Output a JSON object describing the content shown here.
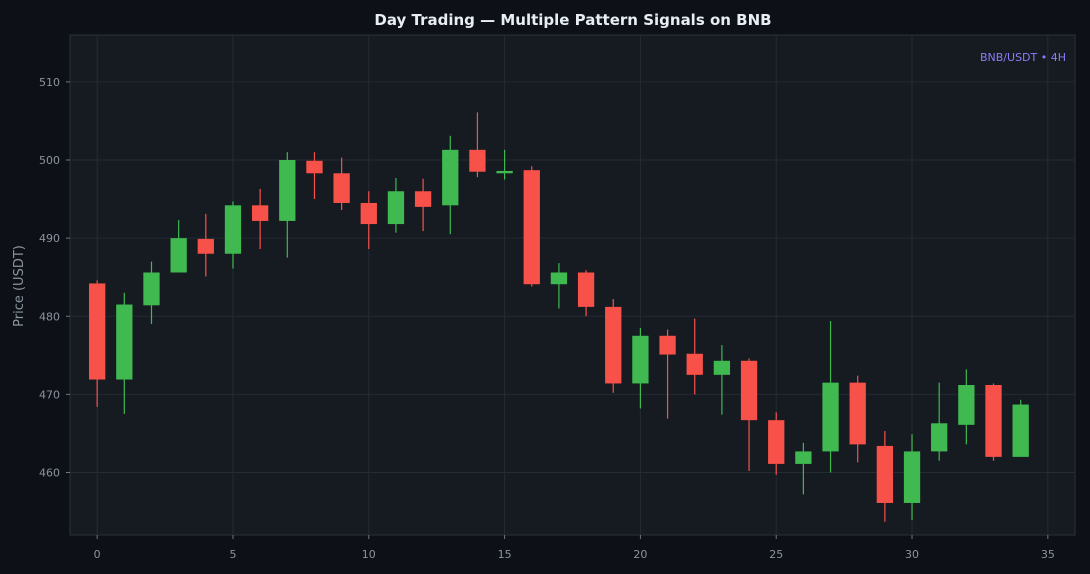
{
  "chart_data": {
    "type": "candlestick",
    "title": "Day Trading — Multiple Pattern Signals on BNB",
    "ylabel": "Price (USDT)",
    "xlabel": "",
    "annotation": "BNB/USDT • 4H",
    "xlim": [
      -1,
      36
    ],
    "ylim": [
      452,
      516
    ],
    "x_ticks": [
      0,
      5,
      10,
      15,
      20,
      25,
      30,
      35
    ],
    "y_ticks": [
      460,
      470,
      480,
      490,
      500,
      510
    ],
    "grid": true,
    "colors": {
      "up": "#3fb950",
      "down": "#f85149",
      "annotation": "#8b7cf6"
    },
    "candles": [
      {
        "x": 0,
        "open": 484.2,
        "high": 484.6,
        "low": 468.4,
        "close": 471.9
      },
      {
        "x": 1,
        "open": 471.9,
        "high": 483.0,
        "low": 467.5,
        "close": 481.5
      },
      {
        "x": 2,
        "open": 481.4,
        "high": 487.0,
        "low": 479.0,
        "close": 485.6
      },
      {
        "x": 3,
        "open": 485.6,
        "high": 492.3,
        "low": 485.6,
        "close": 490.0
      },
      {
        "x": 4,
        "open": 489.9,
        "high": 493.1,
        "low": 485.1,
        "close": 488.0
      },
      {
        "x": 5,
        "open": 488.0,
        "high": 494.7,
        "low": 486.1,
        "close": 494.2
      },
      {
        "x": 6,
        "open": 494.2,
        "high": 496.3,
        "low": 488.6,
        "close": 492.2
      },
      {
        "x": 7,
        "open": 492.2,
        "high": 501.0,
        "low": 487.5,
        "close": 500.0
      },
      {
        "x": 8,
        "open": 499.9,
        "high": 501.0,
        "low": 495.0,
        "close": 498.3
      },
      {
        "x": 9,
        "open": 498.3,
        "high": 500.3,
        "low": 493.6,
        "close": 494.5
      },
      {
        "x": 10,
        "open": 494.5,
        "high": 496.0,
        "low": 488.6,
        "close": 491.8
      },
      {
        "x": 11,
        "open": 491.8,
        "high": 497.7,
        "low": 490.7,
        "close": 496.0
      },
      {
        "x": 12,
        "open": 496.0,
        "high": 497.6,
        "low": 490.9,
        "close": 494.0
      },
      {
        "x": 13,
        "open": 494.2,
        "high": 503.1,
        "low": 490.5,
        "close": 501.3
      },
      {
        "x": 14,
        "open": 501.3,
        "high": 506.1,
        "low": 497.8,
        "close": 498.5
      },
      {
        "x": 15,
        "open": 498.3,
        "high": 501.3,
        "low": 497.5,
        "close": 498.6
      },
      {
        "x": 16,
        "open": 498.7,
        "high": 499.2,
        "low": 483.8,
        "close": 484.1
      },
      {
        "x": 17,
        "open": 484.1,
        "high": 486.8,
        "low": 481.0,
        "close": 485.6
      },
      {
        "x": 18,
        "open": 485.6,
        "high": 485.9,
        "low": 480.0,
        "close": 481.2
      },
      {
        "x": 19,
        "open": 481.2,
        "high": 482.2,
        "low": 470.2,
        "close": 471.4
      },
      {
        "x": 20,
        "open": 471.4,
        "high": 478.5,
        "low": 468.2,
        "close": 477.5
      },
      {
        "x": 21,
        "open": 477.5,
        "high": 478.3,
        "low": 466.9,
        "close": 475.1
      },
      {
        "x": 22,
        "open": 475.2,
        "high": 479.7,
        "low": 470.0,
        "close": 472.5
      },
      {
        "x": 23,
        "open": 472.5,
        "high": 476.3,
        "low": 467.4,
        "close": 474.3
      },
      {
        "x": 24,
        "open": 474.3,
        "high": 474.6,
        "low": 460.2,
        "close": 466.7
      },
      {
        "x": 25,
        "open": 466.7,
        "high": 467.7,
        "low": 459.7,
        "close": 461.1
      },
      {
        "x": 26,
        "open": 461.1,
        "high": 463.8,
        "low": 457.2,
        "close": 462.7
      },
      {
        "x": 27,
        "open": 462.7,
        "high": 479.4,
        "low": 460.0,
        "close": 471.5
      },
      {
        "x": 28,
        "open": 471.5,
        "high": 472.4,
        "low": 461.3,
        "close": 463.6
      },
      {
        "x": 29,
        "open": 463.4,
        "high": 465.3,
        "low": 453.7,
        "close": 456.1
      },
      {
        "x": 30,
        "open": 456.1,
        "high": 464.9,
        "low": 453.9,
        "close": 462.7
      },
      {
        "x": 31,
        "open": 462.7,
        "high": 471.5,
        "low": 461.5,
        "close": 466.3
      },
      {
        "x": 32,
        "open": 466.1,
        "high": 473.2,
        "low": 463.6,
        "close": 471.2
      },
      {
        "x": 33,
        "open": 471.2,
        "high": 471.4,
        "low": 461.5,
        "close": 462.0
      },
      {
        "x": 34,
        "open": 462.0,
        "high": 469.3,
        "low": 462.0,
        "close": 468.7
      }
    ]
  }
}
